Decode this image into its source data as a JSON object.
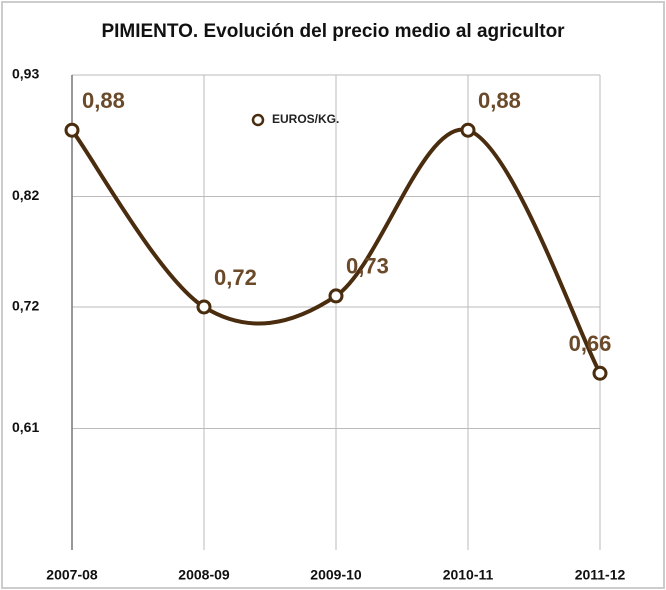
{
  "chart_data": {
    "type": "line",
    "title": "PIMIENTO. Evolución del precio medio al agricultor",
    "categories": [
      "2007-08",
      "2008-09",
      "2009-10",
      "2010-11",
      "2011-12"
    ],
    "series": [
      {
        "name": "EUROS/KG.",
        "color": "#4a2c0e",
        "values": [
          0.88,
          0.72,
          0.73,
          0.88,
          0.66
        ],
        "value_labels": [
          "0,88",
          "0,72",
          "0,73",
          "0,88",
          "0,66"
        ]
      }
    ],
    "ylim": [
      0.5,
      0.93
    ],
    "yticks": [
      {
        "value": 0.93,
        "label": "0,93"
      },
      {
        "value": 0.82,
        "label": "0,82"
      },
      {
        "value": 0.72,
        "label": "0,72"
      },
      {
        "value": 0.61,
        "label": "0,61"
      }
    ],
    "grid": true
  }
}
